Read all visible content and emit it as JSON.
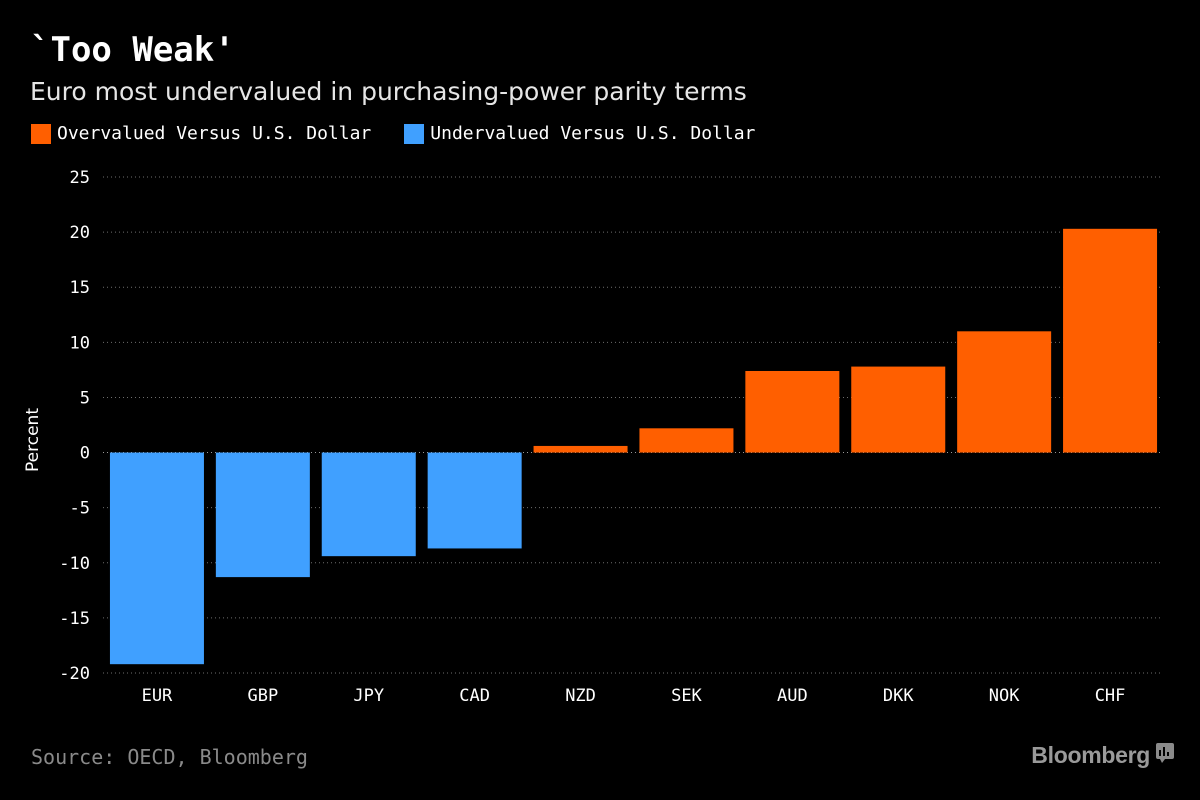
{
  "header": {
    "title": "`Too Weak'",
    "subtitle": "Euro most undervalued in purchasing-power parity terms"
  },
  "legend": {
    "items": [
      {
        "label": "Overvalued Versus U.S. Dollar",
        "color": "#ff5f00"
      },
      {
        "label": "Undervalued Versus U.S. Dollar",
        "color": "#40a0ff"
      }
    ]
  },
  "chart_data": {
    "type": "bar",
    "title": "`Too Weak'",
    "subtitle": "Euro most undervalued in purchasing-power parity terms",
    "xlabel": "",
    "ylabel": "Percent",
    "ylim": [
      -20,
      25
    ],
    "yticks": [
      25,
      20,
      15,
      10,
      5,
      0,
      -5,
      -10,
      -15,
      -20
    ],
    "grid": true,
    "legend_position": "top-left",
    "categories": [
      "EUR",
      "GBP",
      "JPY",
      "CAD",
      "NZD",
      "SEK",
      "AUD",
      "DKK",
      "NOK",
      "CHF"
    ],
    "values": [
      -19.2,
      -11.3,
      -9.4,
      -8.7,
      0.6,
      2.2,
      7.4,
      7.8,
      11.0,
      20.3
    ],
    "colors": {
      "positive": "#ff5f00",
      "negative": "#40a0ff"
    }
  },
  "footer": {
    "source": "Source: OECD, Bloomberg",
    "brand": "Bloomberg",
    "brand_icon": "bloomberg-terminal-icon"
  }
}
